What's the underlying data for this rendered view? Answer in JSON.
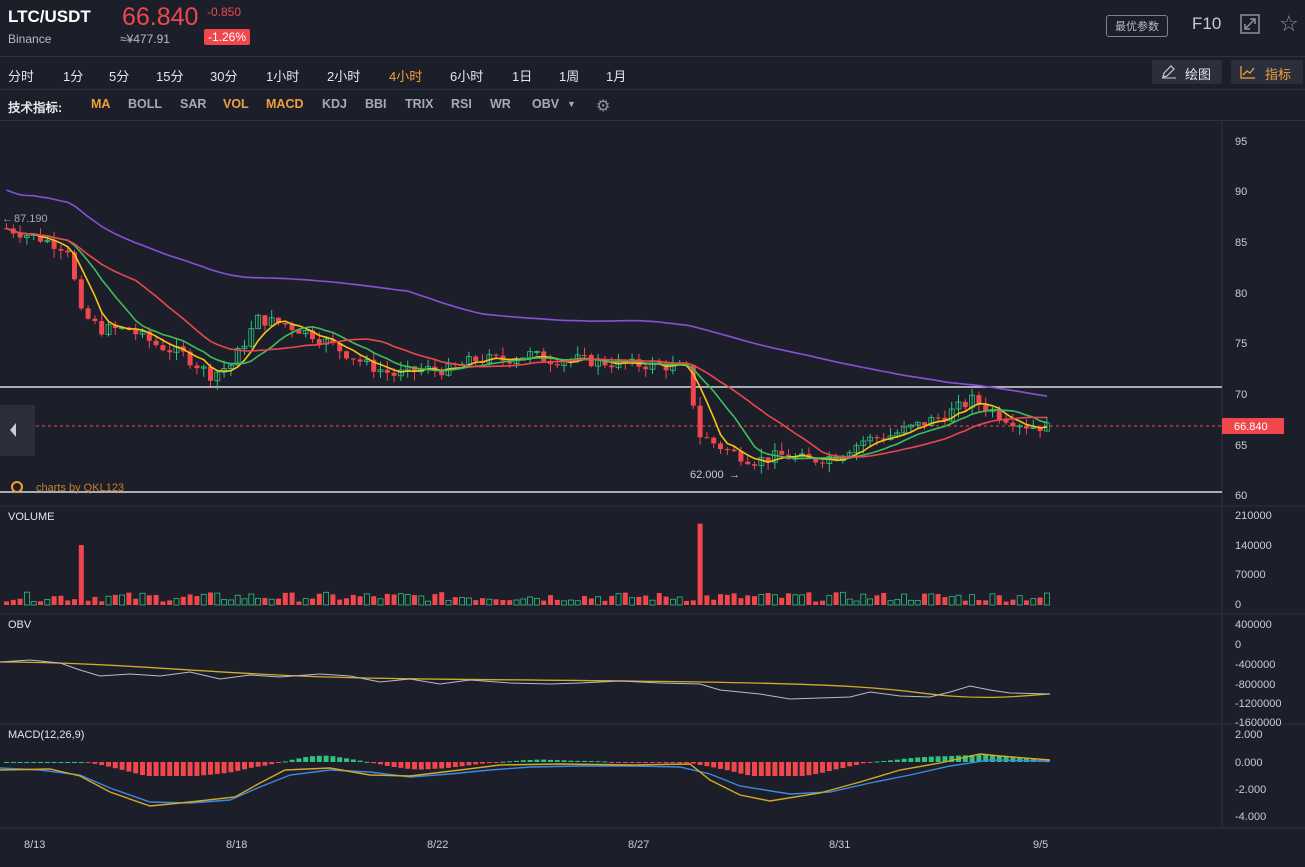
{
  "header": {
    "symbol": "LTC/USDT",
    "exchange": "Binance",
    "price": "66.840",
    "change": "-0.850",
    "cny_price": "≈¥477.91",
    "change_pct": "-1.26%",
    "params_label": "最优参数",
    "f10_label": "F10"
  },
  "toolbar": {
    "timeframes": [
      "分时",
      "1分",
      "5分",
      "15分",
      "30分",
      "1小时",
      "2小时",
      "4小时",
      "6小时",
      "1日",
      "1周",
      "1月"
    ],
    "active_timeframe": "4小时",
    "draw_label": "绘图",
    "indicator_label": "指标"
  },
  "indicators": {
    "label": "技术指标:",
    "items": [
      "MA",
      "BOLL",
      "SAR",
      "VOL",
      "MACD",
      "KDJ",
      "BBI",
      "TRIX",
      "RSI",
      "WR",
      "OBV"
    ],
    "active": [
      "MA",
      "VOL",
      "MACD"
    ]
  },
  "colors": {
    "bg": "#1c1f2a",
    "up": "#2ec27e",
    "down": "#f0474c",
    "accent": "#f0a03c",
    "ma_yellow": "#f5c518",
    "ma_green": "#3dbd5d",
    "ma_red": "#e8474f",
    "ma_purple": "#8a4fd8"
  },
  "chart_data": [
    {
      "type": "candlestick",
      "title": "",
      "price_axis": [
        95,
        90,
        85,
        80,
        75,
        70,
        65,
        60
      ],
      "x_labels": [
        "8/13",
        "8/18",
        "8/22",
        "8/27",
        "8/31",
        "9/5"
      ],
      "last_price": "66.840",
      "high_annotation": "87.190",
      "low_annotation": "62.000",
      "watermark": "charts by QKL123",
      "close_path": [
        [
          0,
          86.5
        ],
        [
          5,
          85.5
        ],
        [
          9,
          84.5
        ],
        [
          11,
          78
        ],
        [
          14,
          76.5
        ],
        [
          18,
          76.5
        ],
        [
          22,
          75
        ],
        [
          26,
          74
        ],
        [
          30,
          72
        ],
        [
          33,
          73
        ],
        [
          37,
          77.5
        ],
        [
          41,
          77
        ],
        [
          45,
          76
        ],
        [
          49,
          74.5
        ],
        [
          53,
          73
        ],
        [
          57,
          72
        ],
        [
          61,
          72.5
        ],
        [
          65,
          72.5
        ],
        [
          69,
          73.5
        ],
        [
          73,
          73.5
        ],
        [
          77,
          74
        ],
        [
          80,
          73.5
        ],
        [
          84,
          73.5
        ],
        [
          88,
          73.2
        ],
        [
          92,
          73
        ],
        [
          96,
          73
        ],
        [
          100,
          72.5
        ],
        [
          102,
          66
        ],
        [
          106,
          64.5
        ],
        [
          110,
          63.5
        ],
        [
          114,
          64
        ],
        [
          118,
          63.5
        ],
        [
          122,
          64
        ],
        [
          126,
          65.5
        ],
        [
          130,
          66
        ],
        [
          134,
          67
        ],
        [
          138,
          68
        ],
        [
          142,
          69.5
        ],
        [
          146,
          68
        ],
        [
          150,
          67
        ],
        [
          153,
          66.8
        ]
      ]
    },
    {
      "type": "bar",
      "name": "VOLUME",
      "y_axis": [
        210000,
        140000,
        70000,
        0
      ],
      "spikes": [
        {
          "x": 11,
          "value": 140000
        },
        {
          "x": 102,
          "value": 190000
        }
      ]
    },
    {
      "type": "line",
      "name": "OBV",
      "y_axis": [
        400000,
        0,
        -400000,
        -800000,
        -1200000,
        -1600000
      ]
    },
    {
      "type": "line",
      "name": "MACD(12,26,9)",
      "y_axis": [
        "2.000",
        "0.000",
        "-2.000",
        "-4.000"
      ]
    }
  ]
}
